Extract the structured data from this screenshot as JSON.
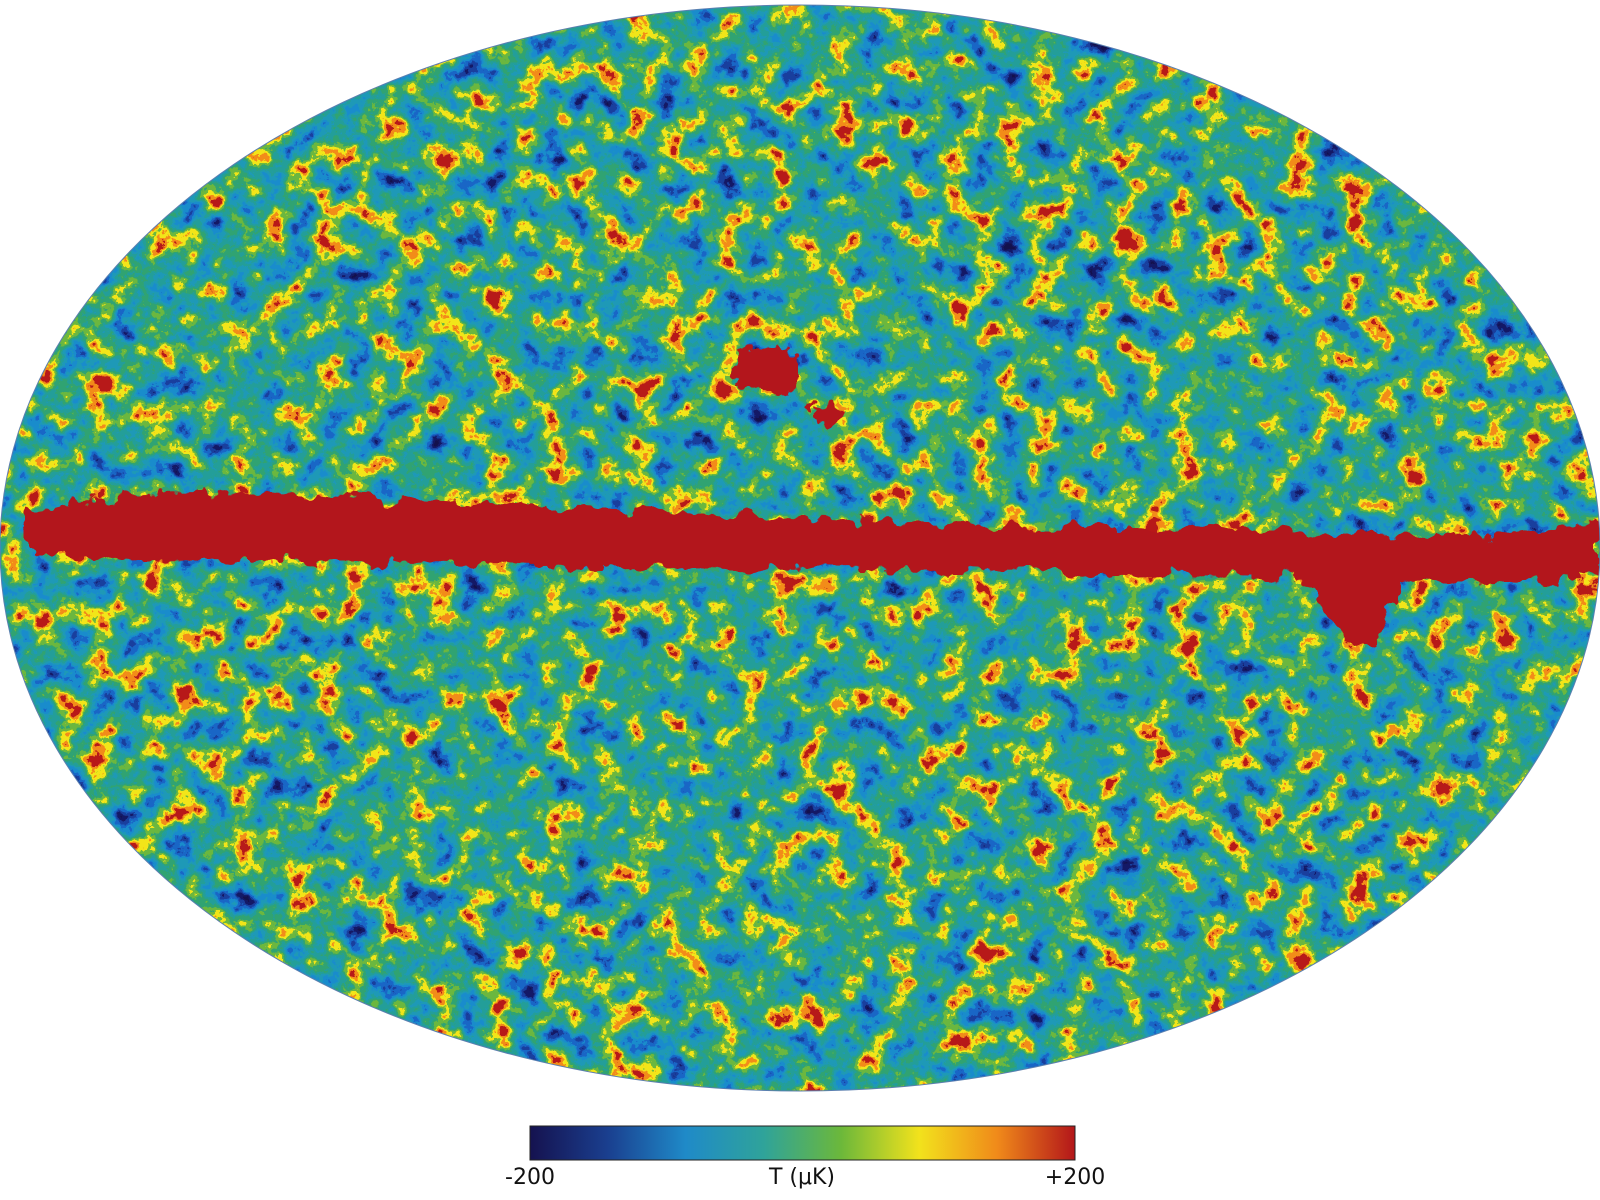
{
  "colorbar": {
    "label": "T (μK)",
    "lim": [
      -200,
      200
    ],
    "ticks": [
      -200,
      {
        "value": 200,
        "label": "+200"
      }
    ],
    "colors": [
      "#15124f",
      "#1a3f8f",
      "#1f8ac8",
      "#2fa39a",
      "#6cb83a",
      "#f2e21c",
      "#f08a1a",
      "#b3161a"
    ]
  }
}
